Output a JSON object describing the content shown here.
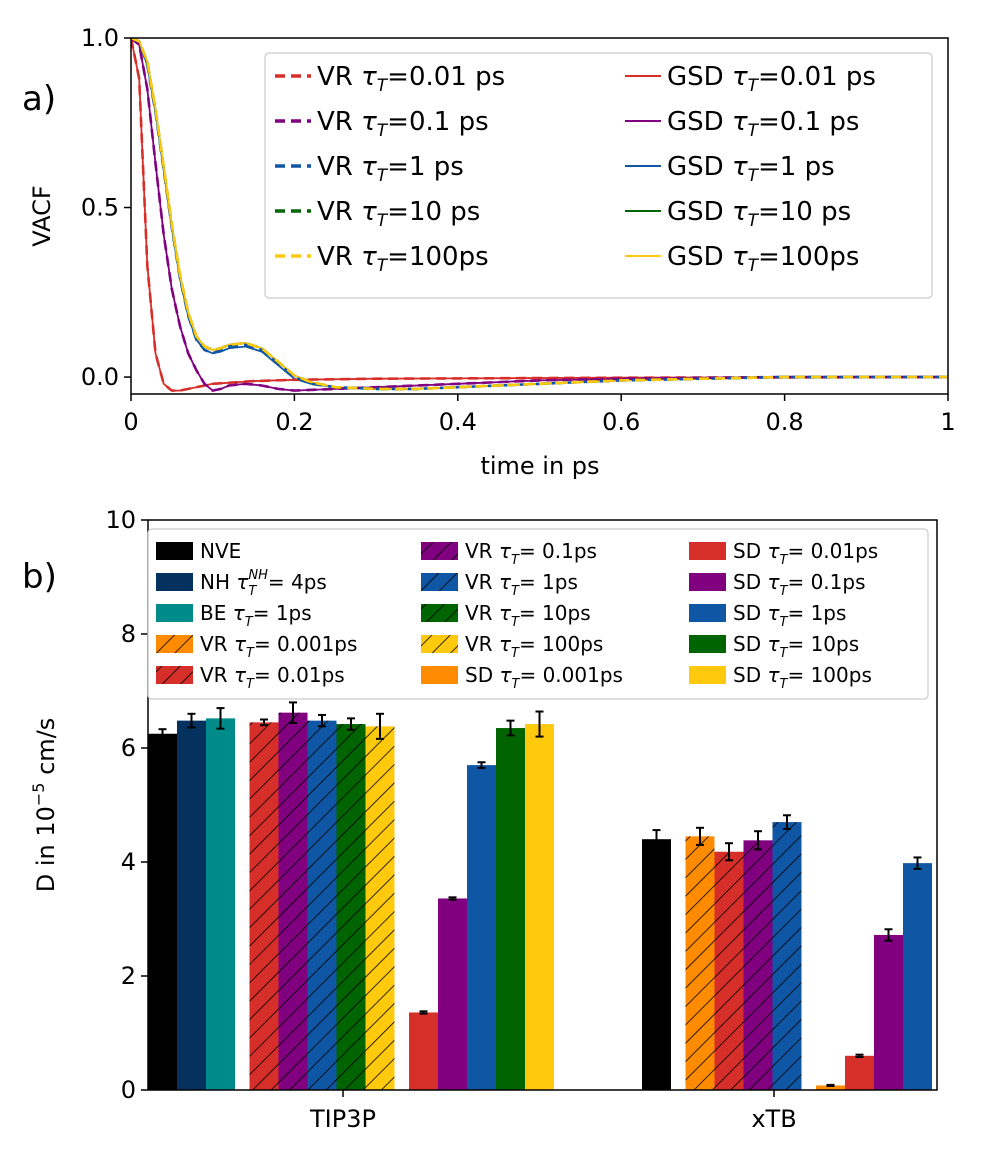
{
  "figure_labels": {
    "a": "a)",
    "b": "b)"
  },
  "chart_data": [
    {
      "type": "line",
      "panel": "a",
      "title": "",
      "xlabel": "time in ps",
      "ylabel": "VACF",
      "xlim": [
        0,
        1
      ],
      "ylim": [
        -0.05,
        1.0
      ],
      "xticks": [
        0,
        0.2,
        0.4,
        0.6,
        0.8,
        1
      ],
      "xtick_labels": [
        "0",
        "0.2",
        "0.4",
        "0.6",
        "0.8",
        "1"
      ],
      "yticks": [
        0.0,
        0.5,
        1.0
      ],
      "ytick_labels": [
        "0.0",
        "0.5",
        "1.0"
      ],
      "legend_position": "top-right",
      "series": [
        {
          "name": "VR τT=0.01 ps",
          "label_pre": "VR ",
          "label_post": "=0.01 ps",
          "color": "#d62f2a",
          "style": "dashed",
          "x": [
            0,
            0.01,
            0.02,
            0.03,
            0.04,
            0.05,
            0.06,
            0.07,
            0.08,
            0.1,
            0.15,
            0.2,
            0.3,
            0.4,
            0.6,
            0.8,
            1.0
          ],
          "y": [
            1.0,
            0.88,
            0.33,
            0.07,
            -0.02,
            -0.04,
            -0.04,
            -0.035,
            -0.03,
            -0.02,
            -0.012,
            -0.008,
            -0.005,
            -0.004,
            -0.002,
            -0.001,
            0.0
          ]
        },
        {
          "name": "VR τT=0.1 ps",
          "label_pre": "VR ",
          "label_post": "=0.1 ps",
          "color": "#800080",
          "style": "dashed",
          "x": [
            0,
            0.01,
            0.02,
            0.03,
            0.04,
            0.05,
            0.06,
            0.07,
            0.08,
            0.09,
            0.1,
            0.11,
            0.12,
            0.14,
            0.16,
            0.18,
            0.2,
            0.25,
            0.3,
            0.4,
            0.5,
            0.6,
            0.8,
            1.0
          ],
          "y": [
            1.0,
            0.98,
            0.85,
            0.63,
            0.42,
            0.26,
            0.15,
            0.07,
            0.02,
            -0.02,
            -0.04,
            -0.035,
            -0.025,
            -0.02,
            -0.025,
            -0.035,
            -0.04,
            -0.035,
            -0.03,
            -0.02,
            -0.01,
            -0.005,
            0.0,
            0.0
          ]
        },
        {
          "name": "VR τT=1 ps",
          "label_pre": "VR ",
          "label_post": "=1 ps",
          "color": "#0f56a5",
          "style": "dashed",
          "x": [
            0,
            0.01,
            0.02,
            0.03,
            0.04,
            0.05,
            0.06,
            0.07,
            0.08,
            0.09,
            0.1,
            0.11,
            0.12,
            0.14,
            0.16,
            0.18,
            0.2,
            0.22,
            0.25,
            0.3,
            0.35,
            0.4,
            0.5,
            0.6,
            0.7,
            0.8,
            1.0
          ],
          "y": [
            1.0,
            0.99,
            0.92,
            0.78,
            0.61,
            0.44,
            0.29,
            0.18,
            0.11,
            0.08,
            0.07,
            0.08,
            0.09,
            0.095,
            0.08,
            0.04,
            0.0,
            -0.02,
            -0.03,
            -0.035,
            -0.035,
            -0.03,
            -0.02,
            -0.01,
            -0.005,
            0.0,
            0.0
          ]
        },
        {
          "name": "VR τT=10 ps",
          "label_pre": "VR ",
          "label_post": "=10 ps",
          "color": "#006400",
          "style": "dashed",
          "x": [
            0,
            0.01,
            0.02,
            0.03,
            0.04,
            0.05,
            0.06,
            0.07,
            0.08,
            0.09,
            0.1,
            0.11,
            0.12,
            0.14,
            0.16,
            0.18,
            0.2,
            0.22,
            0.25,
            0.3,
            0.35,
            0.4,
            0.5,
            0.6,
            0.7,
            0.8,
            1.0
          ],
          "y": [
            1.0,
            0.99,
            0.93,
            0.79,
            0.62,
            0.45,
            0.3,
            0.19,
            0.12,
            0.09,
            0.08,
            0.085,
            0.095,
            0.1,
            0.085,
            0.045,
            0.005,
            -0.015,
            -0.03,
            -0.035,
            -0.035,
            -0.03,
            -0.02,
            -0.01,
            -0.005,
            0.0,
            0.0
          ]
        },
        {
          "name": "VR τT=100ps",
          "label_pre": "VR ",
          "label_post": "=100ps",
          "color": "#ffc90e",
          "style": "dashed",
          "x": [
            0,
            0.01,
            0.02,
            0.03,
            0.04,
            0.05,
            0.06,
            0.07,
            0.08,
            0.09,
            0.1,
            0.11,
            0.12,
            0.14,
            0.16,
            0.18,
            0.2,
            0.22,
            0.25,
            0.3,
            0.35,
            0.4,
            0.5,
            0.6,
            0.7,
            0.8,
            1.0
          ],
          "y": [
            1.0,
            0.99,
            0.93,
            0.79,
            0.62,
            0.45,
            0.3,
            0.19,
            0.12,
            0.09,
            0.08,
            0.085,
            0.095,
            0.1,
            0.085,
            0.045,
            0.005,
            -0.015,
            -0.03,
            -0.035,
            -0.035,
            -0.03,
            -0.02,
            -0.01,
            -0.005,
            0.0,
            0.0
          ]
        },
        {
          "name": "GSD τT=0.01 ps",
          "label_pre": "GSD ",
          "label_post": "=0.01 ps",
          "color": "#d62f2a",
          "style": "solid",
          "x": [
            0,
            0.01,
            0.02,
            0.03,
            0.04,
            0.05,
            0.06,
            0.07,
            0.08,
            0.1,
            0.15,
            0.2,
            0.3,
            0.4,
            0.6,
            0.8,
            1.0
          ],
          "y": [
            1.0,
            0.88,
            0.33,
            0.07,
            -0.02,
            -0.04,
            -0.04,
            -0.035,
            -0.03,
            -0.02,
            -0.012,
            -0.008,
            -0.005,
            -0.004,
            -0.002,
            -0.001,
            0.0
          ]
        },
        {
          "name": "GSD τT=0.1 ps",
          "label_pre": "GSD ",
          "label_post": "=0.1 ps",
          "color": "#800080",
          "style": "solid",
          "x": [
            0,
            0.01,
            0.02,
            0.03,
            0.04,
            0.05,
            0.06,
            0.07,
            0.08,
            0.09,
            0.1,
            0.11,
            0.12,
            0.14,
            0.16,
            0.18,
            0.2,
            0.25,
            0.3,
            0.4,
            0.5,
            0.6,
            0.8,
            1.0
          ],
          "y": [
            1.0,
            0.98,
            0.85,
            0.63,
            0.42,
            0.26,
            0.15,
            0.07,
            0.02,
            -0.02,
            -0.04,
            -0.035,
            -0.025,
            -0.02,
            -0.025,
            -0.035,
            -0.04,
            -0.035,
            -0.03,
            -0.02,
            -0.01,
            -0.005,
            0.0,
            0.0
          ]
        },
        {
          "name": "GSD τT=1 ps",
          "label_pre": "GSD ",
          "label_post": "=1 ps",
          "color": "#0f56a5",
          "style": "solid",
          "x": [
            0,
            0.01,
            0.02,
            0.03,
            0.04,
            0.05,
            0.06,
            0.07,
            0.08,
            0.09,
            0.1,
            0.11,
            0.12,
            0.14,
            0.16,
            0.18,
            0.2,
            0.22,
            0.25,
            0.3,
            0.35,
            0.4,
            0.5,
            0.6,
            0.7,
            0.8,
            1.0
          ],
          "y": [
            1.0,
            0.99,
            0.92,
            0.78,
            0.61,
            0.44,
            0.29,
            0.18,
            0.11,
            0.08,
            0.07,
            0.075,
            0.085,
            0.09,
            0.075,
            0.035,
            -0.005,
            -0.02,
            -0.03,
            -0.035,
            -0.035,
            -0.03,
            -0.02,
            -0.01,
            -0.005,
            0.0,
            0.0
          ]
        },
        {
          "name": "GSD τT=10 ps",
          "label_pre": "GSD ",
          "label_post": "=10 ps",
          "color": "#006400",
          "style": "solid",
          "x": [
            0,
            0.01,
            0.02,
            0.03,
            0.04,
            0.05,
            0.06,
            0.07,
            0.08,
            0.09,
            0.1,
            0.11,
            0.12,
            0.14,
            0.16,
            0.18,
            0.2,
            0.22,
            0.25,
            0.3,
            0.35,
            0.4,
            0.5,
            0.6,
            0.7,
            0.8,
            1.0
          ],
          "y": [
            1.0,
            0.99,
            0.93,
            0.79,
            0.62,
            0.45,
            0.3,
            0.19,
            0.12,
            0.09,
            0.08,
            0.085,
            0.095,
            0.1,
            0.085,
            0.045,
            0.005,
            -0.015,
            -0.03,
            -0.035,
            -0.035,
            -0.03,
            -0.02,
            -0.01,
            -0.005,
            0.0,
            0.0
          ]
        },
        {
          "name": "GSD τT=100ps",
          "label_pre": "GSD ",
          "label_post": "=100ps",
          "color": "#ffc90e",
          "style": "solid",
          "x": [
            0,
            0.01,
            0.02,
            0.03,
            0.04,
            0.05,
            0.06,
            0.07,
            0.08,
            0.09,
            0.1,
            0.11,
            0.12,
            0.14,
            0.16,
            0.18,
            0.2,
            0.22,
            0.25,
            0.3,
            0.35,
            0.4,
            0.5,
            0.6,
            0.7,
            0.8,
            1.0
          ],
          "y": [
            1.0,
            0.99,
            0.93,
            0.79,
            0.62,
            0.45,
            0.3,
            0.19,
            0.12,
            0.09,
            0.08,
            0.085,
            0.095,
            0.1,
            0.085,
            0.045,
            0.005,
            -0.015,
            -0.03,
            -0.035,
            -0.035,
            -0.03,
            -0.02,
            -0.01,
            -0.005,
            0.0,
            0.0
          ]
        }
      ]
    },
    {
      "type": "bar",
      "panel": "b",
      "title": "",
      "xlabel": "",
      "ylabel_pre": "D in 10",
      "ylabel_exp": "−5",
      "ylabel_post": " cm/s",
      "ylim": [
        0,
        10
      ],
      "yticks": [
        0,
        2,
        4,
        6,
        8,
        10
      ],
      "ytick_labels": [
        "0",
        "2",
        "4",
        "6",
        "8",
        "10"
      ],
      "groups": [
        "TIP3P",
        "xTB"
      ],
      "legend_position": "top",
      "legend": [
        {
          "key": "nve",
          "type": "simple",
          "label": "NVE",
          "color": "#000000",
          "hatch": false
        },
        {
          "key": "nh",
          "type": "nh",
          "pre": "NH ",
          "sup": "NH",
          "post": "= 4ps",
          "color": "#05315f",
          "hatch": false
        },
        {
          "key": "be",
          "type": "tau",
          "pre": "BE ",
          "post": "= 1ps",
          "color": "#008b8b",
          "hatch": false
        },
        {
          "key": "vr0001",
          "type": "tau",
          "pre": "VR ",
          "post": "= 0.001ps",
          "color": "#ff8c00",
          "hatch": true
        },
        {
          "key": "vr001",
          "type": "tau",
          "pre": "VR ",
          "post": "= 0.01ps",
          "color": "#d62f2a",
          "hatch": true
        },
        {
          "key": "vr01",
          "type": "tau",
          "pre": "VR ",
          "post": "= 0.1ps",
          "color": "#800080",
          "hatch": true
        },
        {
          "key": "vr1",
          "type": "tau",
          "pre": "VR ",
          "post": "= 1ps",
          "color": "#0f56a5",
          "hatch": true
        },
        {
          "key": "vr10",
          "type": "tau",
          "pre": "VR ",
          "post": "= 10ps",
          "color": "#006400",
          "hatch": true
        },
        {
          "key": "vr100",
          "type": "tau",
          "pre": "VR ",
          "post": "= 100ps",
          "color": "#ffc90e",
          "hatch": true
        },
        {
          "key": "sd0001",
          "type": "tau",
          "pre": "SD ",
          "post": "= 0.001ps",
          "color": "#ff8c00",
          "hatch": false
        },
        {
          "key": "sd001",
          "type": "tau",
          "pre": "SD ",
          "post": "= 0.01ps",
          "color": "#d62f2a",
          "hatch": false
        },
        {
          "key": "sd01",
          "type": "tau",
          "pre": "SD ",
          "post": "= 0.1ps",
          "color": "#800080",
          "hatch": false
        },
        {
          "key": "sd1",
          "type": "tau",
          "pre": "SD ",
          "post": "= 1ps",
          "color": "#0f56a5",
          "hatch": false
        },
        {
          "key": "sd10",
          "type": "tau",
          "pre": "SD ",
          "post": "= 10ps",
          "color": "#006400",
          "hatch": false
        },
        {
          "key": "sd100",
          "type": "tau",
          "pre": "SD ",
          "post": "= 100ps",
          "color": "#ffc90e",
          "hatch": false
        }
      ],
      "bars": [
        {
          "group": "TIP3P",
          "key": "nve",
          "value": 6.25,
          "err": 0.08
        },
        {
          "group": "TIP3P",
          "key": "nh",
          "value": 6.48,
          "err": 0.12
        },
        {
          "group": "TIP3P",
          "key": "be",
          "value": 6.52,
          "err": 0.18
        },
        {
          "group": "TIP3P",
          "key": "vr001",
          "value": 6.45,
          "err": 0.05
        },
        {
          "group": "TIP3P",
          "key": "vr01",
          "value": 6.62,
          "err": 0.18
        },
        {
          "group": "TIP3P",
          "key": "vr1",
          "value": 6.48,
          "err": 0.1
        },
        {
          "group": "TIP3P",
          "key": "vr10",
          "value": 6.42,
          "err": 0.1
        },
        {
          "group": "TIP3P",
          "key": "vr100",
          "value": 6.38,
          "err": 0.22
        },
        {
          "group": "TIP3P",
          "key": "sd001",
          "value": 1.36,
          "err": 0.02
        },
        {
          "group": "TIP3P",
          "key": "sd01",
          "value": 3.36,
          "err": 0.02
        },
        {
          "group": "TIP3P",
          "key": "sd1",
          "value": 5.7,
          "err": 0.05
        },
        {
          "group": "TIP3P",
          "key": "sd10",
          "value": 6.35,
          "err": 0.13
        },
        {
          "group": "TIP3P",
          "key": "sd100",
          "value": 6.42,
          "err": 0.22
        },
        {
          "group": "xTB",
          "key": "nve",
          "value": 4.4,
          "err": 0.16
        },
        {
          "group": "xTB",
          "key": "vr0001",
          "value": 4.45,
          "err": 0.15
        },
        {
          "group": "xTB",
          "key": "vr001",
          "value": 4.18,
          "err": 0.15
        },
        {
          "group": "xTB",
          "key": "vr01",
          "value": 4.38,
          "err": 0.16
        },
        {
          "group": "xTB",
          "key": "vr1",
          "value": 4.7,
          "err": 0.12
        },
        {
          "group": "xTB",
          "key": "sd0001",
          "value": 0.08,
          "err": 0.01
        },
        {
          "group": "xTB",
          "key": "sd001",
          "value": 0.6,
          "err": 0.02
        },
        {
          "group": "xTB",
          "key": "sd01",
          "value": 2.72,
          "err": 0.1
        },
        {
          "group": "xTB",
          "key": "sd1",
          "value": 3.98,
          "err": 0.1
        }
      ]
    }
  ]
}
